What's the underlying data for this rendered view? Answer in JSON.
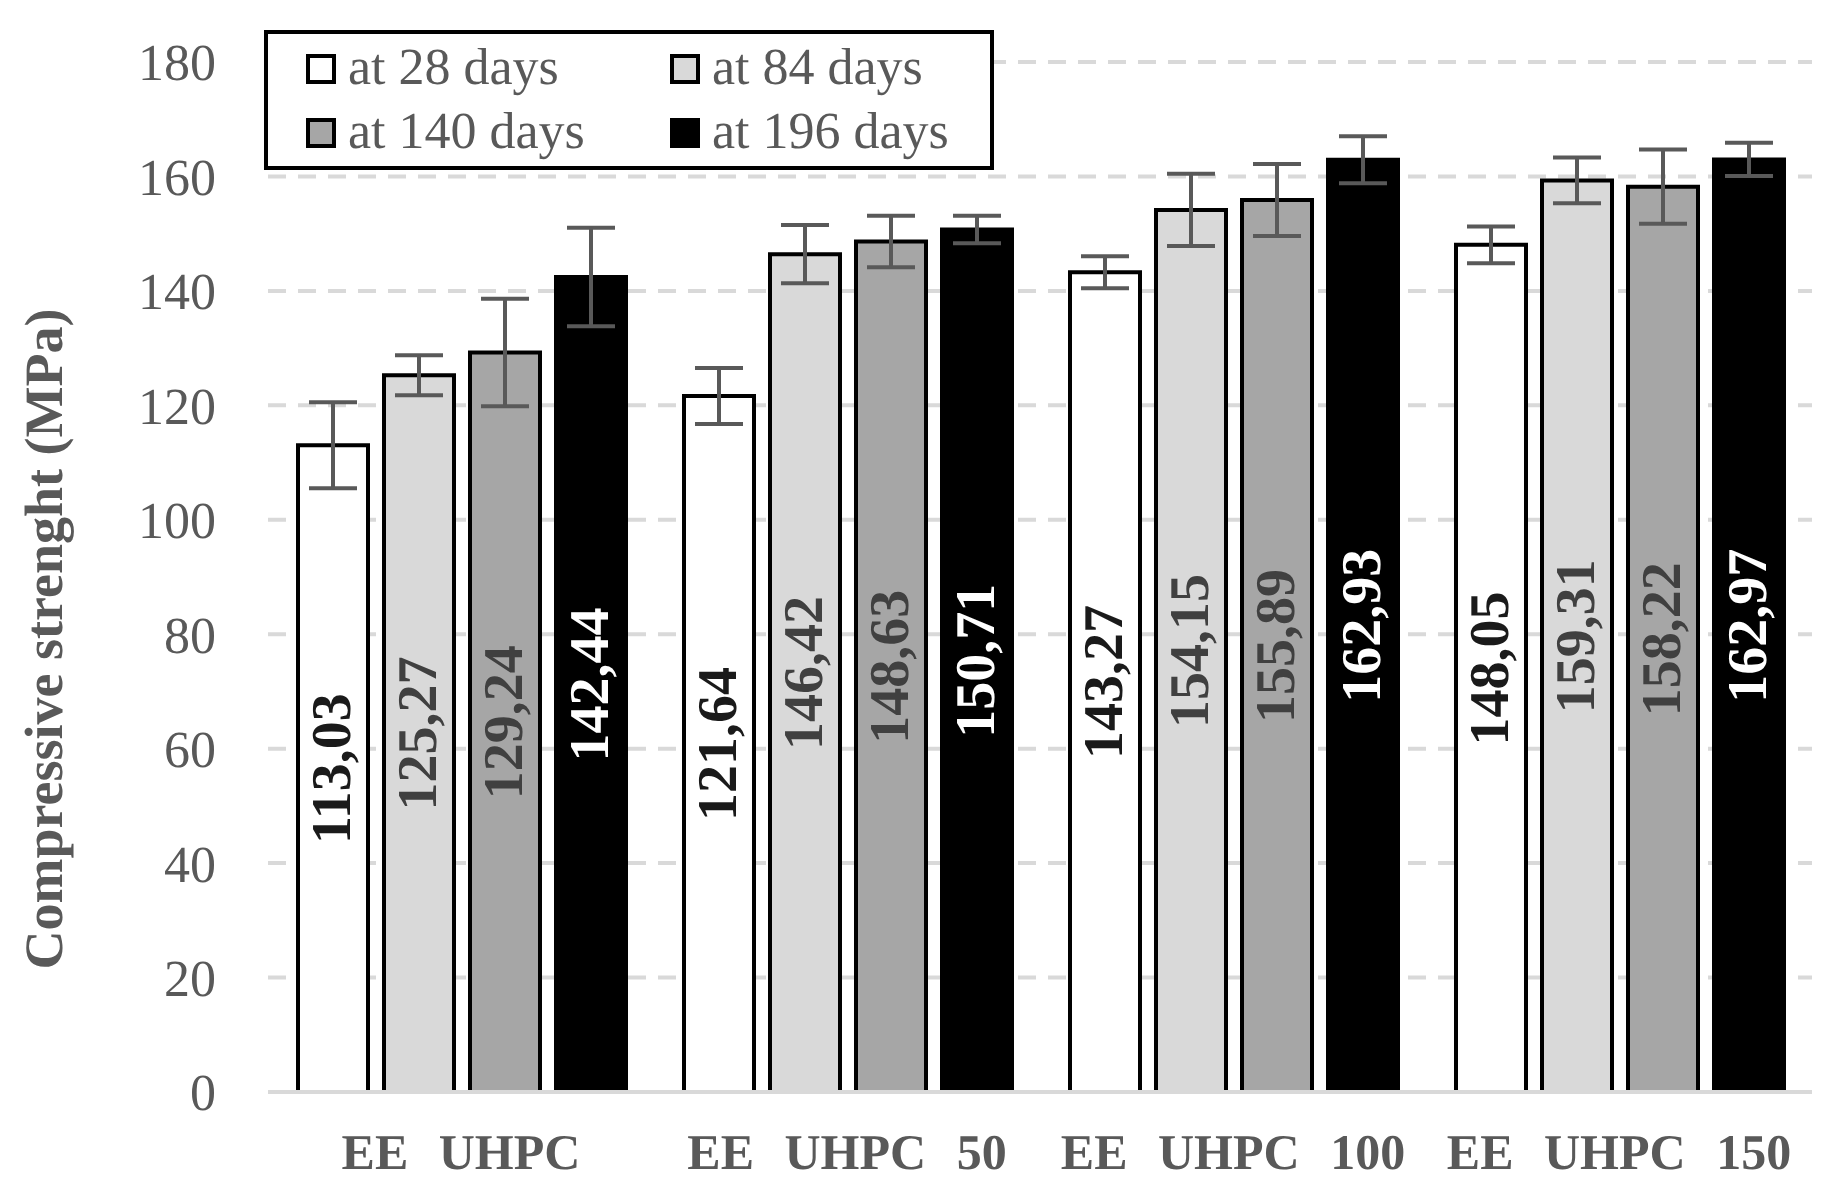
{
  "chart_data": {
    "type": "bar",
    "ylabel": "Compressive strenght (MPa)",
    "categories": [
      "EE UHPC",
      "EE UHPC 50",
      "EE UHPC 100",
      "EE UHPC 150"
    ],
    "ylim": [
      0,
      180
    ],
    "yticks": [
      0,
      20,
      40,
      60,
      80,
      100,
      120,
      140,
      160,
      180
    ],
    "grid": "y",
    "legend": "top left",
    "series": [
      {
        "name": "at 28 days",
        "color": "#ffffff",
        "values": [
          113.03,
          121.64,
          143.27,
          148.05
        ],
        "errors": [
          7.5,
          4.9,
          2.8,
          3.2
        ],
        "value_labels": [
          "113,03",
          "121,64",
          "143,27",
          "148,05"
        ]
      },
      {
        "name": "at 84 days",
        "color": "#d9d9d9",
        "values": [
          125.27,
          146.42,
          154.15,
          159.31
        ],
        "errors": [
          3.5,
          5.1,
          6.3,
          4.0
        ],
        "value_labels": [
          "125,27",
          "146,42",
          "154,15",
          "159,31"
        ]
      },
      {
        "name": "at 140 days",
        "color": "#a6a6a6",
        "values": [
          129.24,
          148.63,
          155.89,
          158.22
        ],
        "errors": [
          9.4,
          4.5,
          6.3,
          6.5
        ],
        "value_labels": [
          "129,24",
          "148,63",
          "155,89",
          "158,22"
        ]
      },
      {
        "name": "at 196 days",
        "color": "#000000",
        "values": [
          142.44,
          150.71,
          162.93,
          162.97
        ],
        "errors": [
          8.6,
          2.4,
          4.1,
          2.9
        ],
        "value_labels": [
          "142,44",
          "150,71",
          "162,93",
          "162,97"
        ]
      }
    ]
  }
}
